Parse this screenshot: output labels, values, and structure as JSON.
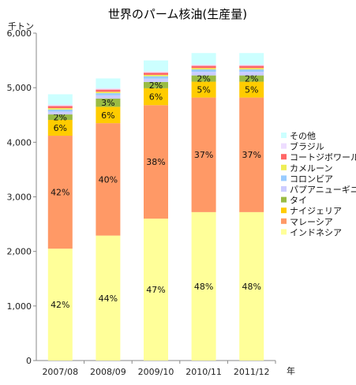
{
  "chart_data": {
    "type": "bar",
    "stacked": true,
    "title": "世界のパーム核油(生産量)",
    "ylabel": "千トン",
    "xlabel": "年",
    "ylim": [
      0,
      6000
    ],
    "yticks": [
      "0",
      "1,000",
      "2,000",
      "3,000",
      "4,000",
      "5,000",
      "6,000"
    ],
    "ytick_values": [
      0,
      1000,
      2000,
      3000,
      4000,
      5000,
      6000
    ],
    "grid": false,
    "legend_position": "right",
    "categories": [
      "2007/08",
      "2008/09",
      "2009/10",
      "2010/11",
      "2011/12"
    ],
    "series": [
      {
        "name": "インドネシア",
        "color": "#FFFF99",
        "values": [
          2050,
          2290,
          2600,
          2720,
          2720
        ],
        "labels": [
          "42%",
          "44%",
          "47%",
          "48%",
          "48%"
        ]
      },
      {
        "name": "マレーシア",
        "color": "#FF9966",
        "values": [
          2070,
          2060,
          2080,
          2100,
          2100
        ],
        "labels": [
          "42%",
          "40%",
          "38%",
          "37%",
          "37%"
        ]
      },
      {
        "name": "ナイジェリア",
        "color": "#FFCC00",
        "values": [
          290,
          300,
          310,
          290,
          290
        ],
        "labels": [
          "6%",
          "6%",
          "6%",
          "5%",
          "5%"
        ]
      },
      {
        "name": "タイ",
        "color": "#99BB44",
        "values": [
          100,
          150,
          115,
          115,
          115
        ],
        "labels": [
          "2%",
          "3%",
          "2%",
          "2%",
          "2%"
        ]
      },
      {
        "name": "パプアニューギニア",
        "color": "#CCCCFF",
        "values": [
          50,
          60,
          60,
          65,
          65
        ]
      },
      {
        "name": "コロンビア",
        "color": "#99CCFF",
        "values": [
          40,
          40,
          45,
          45,
          45
        ]
      },
      {
        "name": "カメルーン",
        "color": "#EEEE55",
        "values": [
          25,
          25,
          25,
          25,
          25
        ]
      },
      {
        "name": "コートジボワール",
        "color": "#FF6666",
        "values": [
          40,
          40,
          40,
          40,
          40
        ]
      },
      {
        "name": "ブラジル",
        "color": "#EEDDFF",
        "values": [
          25,
          25,
          25,
          25,
          25
        ]
      },
      {
        "name": "その他",
        "color": "#CCFFFF",
        "values": [
          190,
          180,
          200,
          210,
          210
        ]
      }
    ]
  }
}
